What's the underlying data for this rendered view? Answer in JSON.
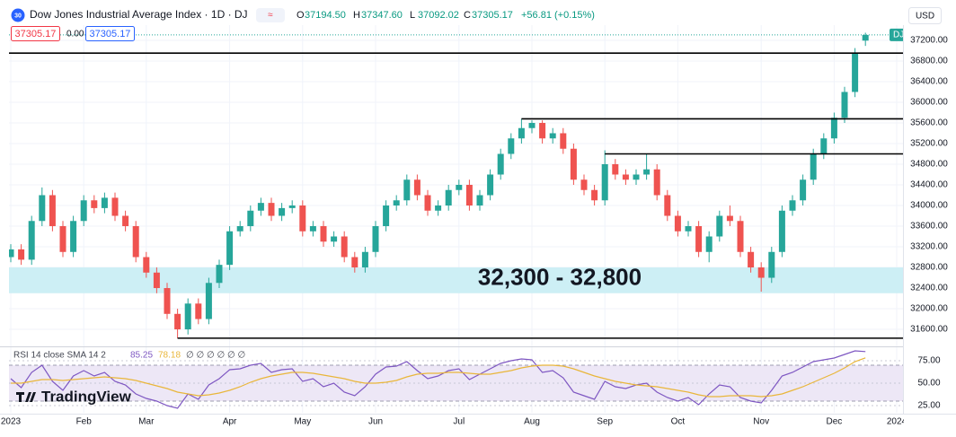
{
  "header": {
    "logo": "30",
    "title": "Dow Jones Industrial Average Index · 1D · DJ",
    "ohlc": [
      {
        "key": "O",
        "value": "37194.50"
      },
      {
        "key": "H",
        "value": "37347.60"
      },
      {
        "key": "L",
        "value": "37092.02"
      },
      {
        "key": "C",
        "value": "37305.17"
      }
    ],
    "change": "+56.81 (+0.15%)",
    "bid": "37305.17",
    "spread": "0.00",
    "ask": "37305.17",
    "currency": "USD"
  },
  "watermark": "TradingView",
  "chart_data": [
    {
      "type": "candlestick",
      "categories": [
        "2023",
        null,
        null,
        null,
        null,
        null,
        null,
        "Feb",
        null,
        null,
        null,
        null,
        null,
        "Mar",
        null,
        null,
        null,
        null,
        null,
        null,
        null,
        "Apr",
        null,
        null,
        null,
        null,
        null,
        null,
        "May",
        null,
        null,
        null,
        null,
        null,
        null,
        "Jun",
        null,
        null,
        null,
        null,
        null,
        null,
        null,
        "Jul",
        null,
        null,
        null,
        null,
        null,
        null,
        "Aug",
        null,
        null,
        null,
        null,
        null,
        null,
        "Sep",
        null,
        null,
        null,
        null,
        null,
        null,
        "Oct",
        null,
        null,
        null,
        null,
        null,
        null,
        null,
        "Nov",
        null,
        null,
        null,
        null,
        null,
        null,
        "Dec",
        null,
        null,
        null,
        null,
        null,
        "2024"
      ],
      "open": [
        33000,
        33150,
        32950,
        33700,
        34200,
        33600,
        33100,
        33700,
        34100,
        33950,
        34150,
        33800,
        33600,
        33000,
        32700,
        32400,
        31900,
        31600,
        32100,
        31800,
        32500,
        32850,
        33500,
        33600,
        33900,
        34050,
        33800,
        33950,
        34000,
        33500,
        33600,
        33300,
        33400,
        33000,
        32800,
        33100,
        33600,
        34000,
        34100,
        34500,
        34200,
        33900,
        34000,
        34300,
        34400,
        34000,
        34200,
        34600,
        35000,
        35300,
        35500,
        35600,
        35300,
        35400,
        35100,
        34500,
        34300,
        34100,
        34800,
        34600,
        34500,
        34600,
        34700,
        34200,
        33800,
        33500,
        33600,
        33100,
        33400,
        33800,
        33700,
        33100,
        32800,
        32600,
        33100,
        33900,
        34100,
        34500,
        35000,
        35300,
        35700,
        36200,
        37194.5,
        null,
        null,
        null
      ],
      "high": [
        33250,
        33250,
        33800,
        34350,
        34300,
        33700,
        33800,
        34200,
        34200,
        34250,
        34250,
        33900,
        33700,
        33100,
        32800,
        32500,
        32000,
        32200,
        32200,
        32600,
        32950,
        33600,
        33700,
        34000,
        34150,
        34150,
        34050,
        34100,
        34100,
        33700,
        33700,
        33500,
        33500,
        33100,
        33200,
        33700,
        34100,
        34200,
        34600,
        34600,
        34300,
        34100,
        34400,
        34500,
        34500,
        34300,
        34700,
        35100,
        35400,
        35679,
        35650,
        35650,
        35500,
        35500,
        35200,
        34600,
        34400,
        35070,
        34900,
        34700,
        34700,
        35000,
        34800,
        34300,
        33900,
        33700,
        33700,
        33500,
        33900,
        34000,
        33800,
        33200,
        32900,
        33200,
        34000,
        34200,
        34600,
        35100,
        35400,
        35800,
        36300,
        37050,
        37347.6,
        null,
        null,
        null
      ],
      "low": [
        32900,
        32850,
        32850,
        33600,
        33500,
        33000,
        33000,
        33600,
        33850,
        33850,
        33700,
        33500,
        32900,
        32600,
        32300,
        31800,
        31429,
        31500,
        31700,
        31700,
        32400,
        32750,
        33400,
        33500,
        33800,
        33700,
        33700,
        33850,
        33400,
        33400,
        33200,
        33200,
        32900,
        32700,
        32700,
        33000,
        33500,
        33900,
        34000,
        34100,
        33800,
        33800,
        33900,
        34200,
        33900,
        33900,
        34100,
        34500,
        34900,
        35200,
        35400,
        35200,
        35200,
        35000,
        34400,
        34200,
        34000,
        34000,
        34500,
        34400,
        34400,
        34500,
        34100,
        33700,
        33400,
        33400,
        33000,
        32900,
        33300,
        33600,
        33000,
        32700,
        32330,
        32500,
        33000,
        33800,
        34000,
        34400,
        34900,
        35200,
        35600,
        36100,
        37092.02,
        null,
        null,
        null
      ],
      "close": [
        33150,
        32950,
        33700,
        34200,
        33600,
        33100,
        33700,
        34100,
        33950,
        34150,
        33800,
        33600,
        33000,
        32700,
        32400,
        31900,
        31600,
        32100,
        31800,
        32500,
        32850,
        33500,
        33600,
        33900,
        34050,
        33800,
        33950,
        34000,
        33500,
        33600,
        33300,
        33400,
        33000,
        32800,
        33100,
        33600,
        34000,
        34100,
        34500,
        34200,
        33900,
        34000,
        34300,
        34400,
        34000,
        34200,
        34600,
        35000,
        35300,
        35500,
        35600,
        35300,
        35400,
        35100,
        34500,
        34300,
        34100,
        34800,
        34600,
        34500,
        34600,
        34700,
        34200,
        33800,
        33500,
        33600,
        33100,
        33400,
        33800,
        33700,
        33100,
        32800,
        32600,
        33100,
        33900,
        34100,
        34500,
        35000,
        35300,
        35700,
        36200,
        36950,
        37305.17,
        null,
        null,
        null
      ],
      "up_color": "#26a69a",
      "down_color": "#ef5350",
      "ylim": [
        31340,
        37460
      ],
      "yticks": [
        {
          "value": 31600,
          "label": "31600.00"
        },
        {
          "value": 32000,
          "label": "32000.00"
        },
        {
          "value": 32400,
          "label": "32400.00"
        },
        {
          "value": 32800,
          "label": "32800.00"
        },
        {
          "value": 33200,
          "label": "33200.00"
        },
        {
          "value": 33600,
          "label": "33600.00"
        },
        {
          "value": 34000,
          "label": "34000.00"
        },
        {
          "value": 34400,
          "label": "34400.00"
        },
        {
          "value": 34800,
          "label": "34800.00"
        },
        {
          "value": 35200,
          "label": "35200.00"
        },
        {
          "value": 35600,
          "label": "35600.00"
        },
        {
          "value": 36000,
          "label": "36000.00"
        },
        {
          "value": 36400,
          "label": "36400.00"
        },
        {
          "value": 36800,
          "label": "36800.00"
        },
        {
          "value": 37200,
          "label": "37200.00"
        }
      ],
      "grid": true,
      "price_tag": {
        "symbol": "DJI",
        "color": "#26a69a"
      },
      "levels": [
        {
          "value": 36952,
          "label": "36952.00"
        },
        {
          "value": 35679,
          "label": "35679.00"
        },
        {
          "value": 35000,
          "label": "35000.00"
        },
        {
          "value": 31429,
          "label": "31429.00"
        }
      ],
      "zone": {
        "range": [
          32300,
          32800
        ],
        "label": "32,300 - 32,800",
        "color": "#cdeff5"
      }
    },
    {
      "type": "line",
      "title": "RSI 14 close SMA 14 2",
      "legend_extra": "∅ ∅ ∅ ∅ ∅ ∅",
      "series": [
        {
          "color": "#7e57c2",
          "values": [
            55,
            45,
            62,
            70,
            52,
            42,
            58,
            64,
            58,
            62,
            52,
            48,
            38,
            33,
            30,
            25,
            22,
            38,
            32,
            48,
            55,
            65,
            66,
            70,
            72,
            62,
            65,
            66,
            52,
            55,
            46,
            50,
            40,
            36,
            46,
            60,
            68,
            69,
            74,
            64,
            55,
            58,
            64,
            66,
            54,
            60,
            66,
            72,
            75,
            77,
            76,
            62,
            64,
            56,
            40,
            36,
            32,
            52,
            46,
            44,
            48,
            50,
            40,
            34,
            30,
            34,
            26,
            38,
            48,
            46,
            34,
            30,
            28,
            42,
            58,
            62,
            68,
            74,
            76,
            78,
            82,
            86,
            85.25,
            null,
            null,
            null
          ]
        },
        {
          "color": "#e9b63a",
          "values": [
            50,
            50,
            52,
            54,
            54,
            53,
            54,
            55,
            56,
            57,
            56,
            55,
            53,
            50,
            47,
            44,
            40,
            38,
            36,
            37,
            39,
            42,
            46,
            51,
            55,
            58,
            60,
            62,
            62,
            61,
            59,
            57,
            55,
            52,
            50,
            50,
            51,
            53,
            57,
            60,
            61,
            61,
            62,
            62,
            61,
            60,
            60,
            62,
            64,
            67,
            69,
            70,
            70,
            69,
            66,
            62,
            58,
            55,
            52,
            50,
            48,
            47,
            46,
            44,
            42,
            40,
            37,
            35,
            35,
            36,
            36,
            36,
            35,
            36,
            38,
            42,
            46,
            51,
            56,
            61,
            67,
            74,
            78.18,
            null,
            null,
            null
          ]
        }
      ],
      "ylim": [
        17,
        89
      ],
      "yticks": [
        {
          "value": 25,
          "label": "25.00"
        },
        {
          "value": 50,
          "label": "50.00"
        },
        {
          "value": 75,
          "label": "75.00"
        }
      ],
      "band": [
        30,
        70
      ],
      "band_color": "#ede7f6"
    }
  ]
}
